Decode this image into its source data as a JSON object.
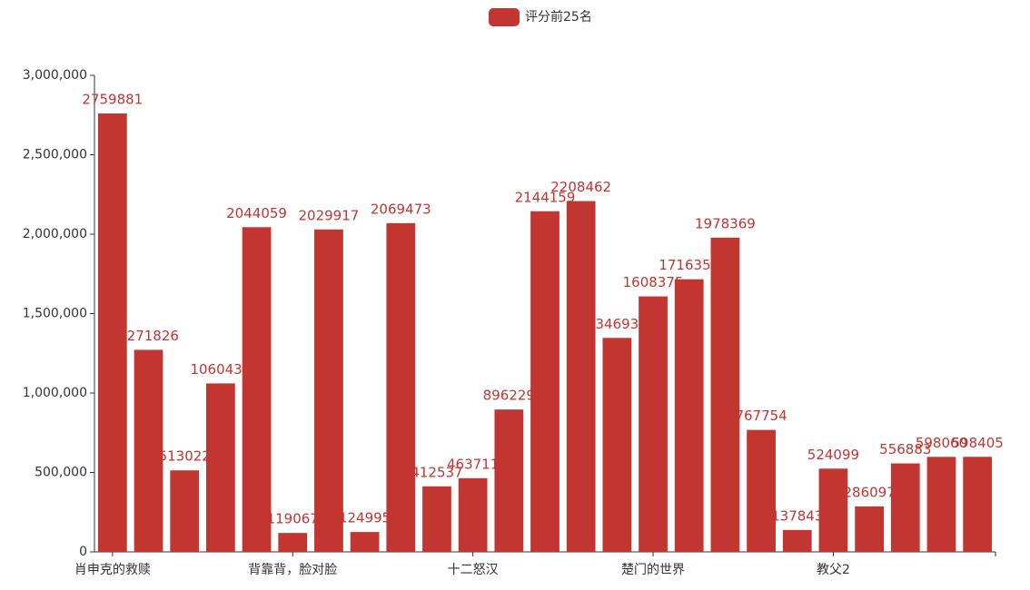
{
  "chart_data": {
    "type": "bar",
    "categories": [
      "肖申克的救赎",
      null,
      null,
      null,
      null,
      "背靠背，脸对脸",
      null,
      null,
      null,
      null,
      "十二怒汉",
      null,
      null,
      null,
      null,
      "楚门的世界",
      null,
      null,
      null,
      null,
      "教父2",
      null,
      null,
      null,
      null
    ],
    "series": [
      {
        "name": "评分前25名",
        "color": "#c23531",
        "values": [
          2759881,
          1271826,
          513022,
          1060430,
          2044059,
          119067,
          2029917,
          124995,
          2069473,
          412537,
          463711,
          896229,
          2144159,
          2208462,
          1346930,
          1608375,
          1716350,
          1978369,
          767754,
          137843,
          524099,
          286097,
          556883,
          598060,
          598405
        ]
      }
    ],
    "ylim": [
      0,
      3000000
    ],
    "yticks": [
      0,
      {
        "value": 500000,
        "label": "500,000"
      },
      {
        "value": 1000000,
        "label": "1,000,000"
      },
      {
        "value": 1500000,
        "label": "1,500,000"
      },
      {
        "value": 2000000,
        "label": "2,000,000"
      },
      {
        "value": 2500000,
        "label": "2,500,000"
      },
      {
        "value": 3000000,
        "label": "3,000,000"
      }
    ],
    "legend": "top"
  }
}
